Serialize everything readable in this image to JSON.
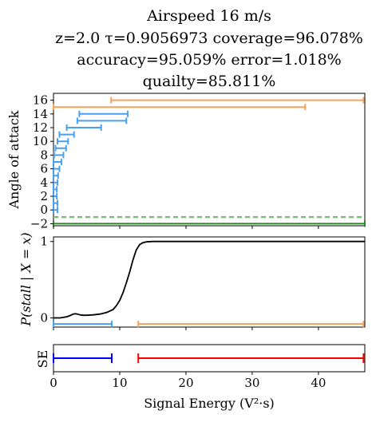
{
  "chart_data": [
    {
      "type": "interval",
      "title_lines": [
        "Airspeed 16 m/s",
        "z=2.0 τ=0.9056973 coverage=96.078%",
        "accuracy=95.059% error=1.018%",
        "quailty=85.811%"
      ],
      "ylabel": "Angle of attack",
      "xlim": [
        0,
        47
      ],
      "ylim": [
        -2.3,
        17.0
      ],
      "yticks": [
        -2,
        0,
        2,
        4,
        6,
        8,
        10,
        12,
        14,
        16
      ],
      "colors": {
        "blue": "#4a9ff0",
        "orange": "#f5a35c",
        "green": "#2a8a2a",
        "grey": "#8a8a8a"
      },
      "dashed_lines": [
        {
          "y": -1.0,
          "color": "#8a8a8a"
        },
        {
          "y": -1.1,
          "color": "#7cc47c"
        }
      ],
      "intervals": [
        {
          "y": -2,
          "x0": 0.0,
          "x1": 47.0,
          "color": "green"
        },
        {
          "y": 0,
          "x0": 0.0,
          "x1": 0.6,
          "color": "blue"
        },
        {
          "y": 1,
          "x0": 0.0,
          "x1": 0.6,
          "color": "blue"
        },
        {
          "y": 2,
          "x0": 0.0,
          "x1": 0.5,
          "color": "blue"
        },
        {
          "y": 3,
          "x0": 0.0,
          "x1": 0.5,
          "color": "blue"
        },
        {
          "y": 4,
          "x0": 0.0,
          "x1": 0.6,
          "color": "blue"
        },
        {
          "y": 5,
          "x0": 0.0,
          "x1": 0.7,
          "color": "blue"
        },
        {
          "y": 6,
          "x0": 0.0,
          "x1": 0.9,
          "color": "blue"
        },
        {
          "y": 7,
          "x0": 0.0,
          "x1": 1.2,
          "color": "blue"
        },
        {
          "y": 8,
          "x0": 0.1,
          "x1": 1.5,
          "color": "blue"
        },
        {
          "y": 9,
          "x0": 0.3,
          "x1": 1.9,
          "color": "blue"
        },
        {
          "y": 10,
          "x0": 0.6,
          "x1": 2.2,
          "color": "blue"
        },
        {
          "y": 11,
          "x0": 0.9,
          "x1": 3.1,
          "color": "blue"
        },
        {
          "y": 12,
          "x0": 2.0,
          "x1": 7.2,
          "color": "blue"
        },
        {
          "y": 13,
          "x0": 3.6,
          "x1": 11.0,
          "color": "blue"
        },
        {
          "y": 14,
          "x0": 3.9,
          "x1": 11.2,
          "color": "blue"
        },
        {
          "y": 15,
          "x0": 0.0,
          "x1": 38.0,
          "color": "orange"
        },
        {
          "y": 16,
          "x0": 8.7,
          "x1": 46.8,
          "color": "orange"
        }
      ]
    },
    {
      "type": "line",
      "ylabel": "P(stall | X = x)",
      "xlim": [
        0,
        47
      ],
      "ylim": [
        -0.12,
        1.06
      ],
      "yticks": [
        0,
        1
      ],
      "x": [
        0,
        1,
        2,
        2.5,
        3,
        3.3,
        3.6,
        4,
        4.5,
        5,
        6,
        7,
        8,
        9,
        9.5,
        10,
        10.5,
        11,
        11.5,
        12,
        12.5,
        13,
        13.5,
        14,
        15,
        20,
        30,
        40,
        47
      ],
      "y": [
        0.0,
        0.0,
        0.015,
        0.03,
        0.05,
        0.055,
        0.05,
        0.04,
        0.035,
        0.035,
        0.04,
        0.05,
        0.07,
        0.11,
        0.16,
        0.23,
        0.33,
        0.46,
        0.6,
        0.76,
        0.89,
        0.96,
        0.985,
        0.995,
        1.0,
        1.0,
        1.0,
        1.0,
        1.0
      ],
      "color": "#000000",
      "intervals": [
        {
          "y": -0.08,
          "x0": 0.0,
          "x1": 8.8,
          "color": "#4a9ff0"
        },
        {
          "y": -0.08,
          "x0": 12.8,
          "x1": 46.8,
          "color": "#f5a35c"
        }
      ]
    },
    {
      "type": "interval",
      "ylabel": "SE",
      "xlabel": "Signal Energy (V²·s)",
      "xlim": [
        0,
        47
      ],
      "xticks": [
        0,
        10,
        20,
        30,
        40
      ],
      "intervals": [
        {
          "x0": 0.0,
          "x1": 8.8,
          "color": "#0000ff"
        },
        {
          "x0": 12.8,
          "x1": 46.8,
          "color": "#ff0000"
        }
      ]
    }
  ]
}
